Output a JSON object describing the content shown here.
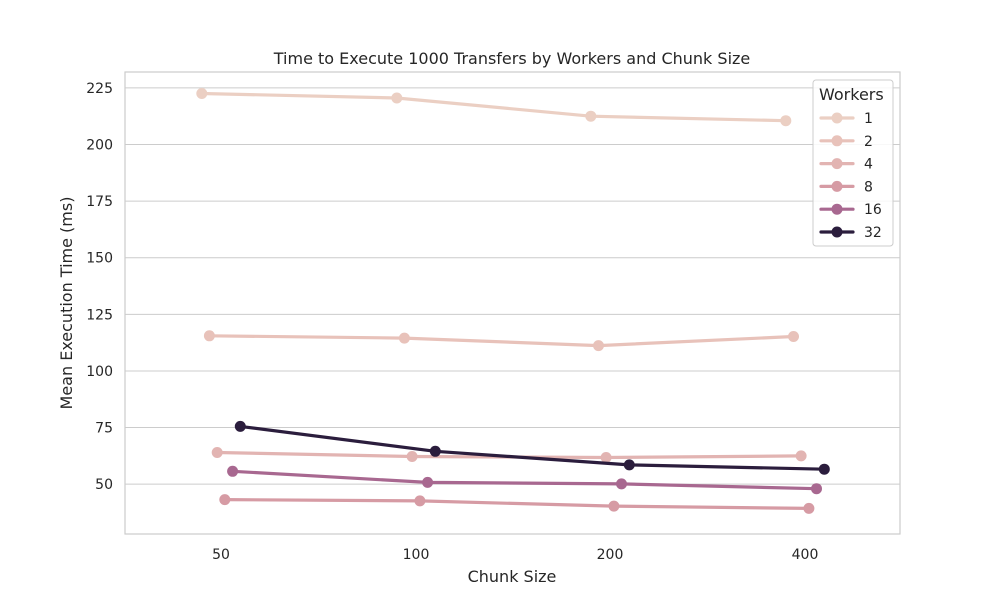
{
  "chart_data": {
    "type": "line",
    "title": "Time to Execute 1000 Transfers by Workers and Chunk Size",
    "xlabel": "Chunk Size",
    "ylabel": "Mean Execution Time (ms)",
    "categories": [
      "50",
      "100",
      "200",
      "400"
    ],
    "ylim": [
      28,
      232
    ],
    "yticks": [
      50,
      75,
      100,
      125,
      150,
      175,
      200,
      225
    ],
    "grid": true,
    "legend": {
      "title": "Workers",
      "placement": "top-right"
    },
    "series": [
      {
        "name": "1",
        "color": "#ebcfc3",
        "values": [
          222.5,
          220.5,
          212.5,
          210.5
        ]
      },
      {
        "name": "2",
        "color": "#e8c2ba",
        "values": [
          115.5,
          114.5,
          111.2,
          115.2
        ]
      },
      {
        "name": "4",
        "color": "#e2b4b2",
        "values": [
          64.0,
          62.2,
          61.8,
          62.5
        ]
      },
      {
        "name": "8",
        "color": "#d69ba4",
        "values": [
          43.2,
          42.6,
          40.3,
          39.3
        ]
      },
      {
        "name": "16",
        "color": "#a86890",
        "values": [
          55.7,
          50.8,
          50.1,
          48.0
        ]
      },
      {
        "name": "32",
        "color": "#2b1d3d",
        "values": [
          75.5,
          64.5,
          58.5,
          56.6
        ]
      }
    ]
  }
}
